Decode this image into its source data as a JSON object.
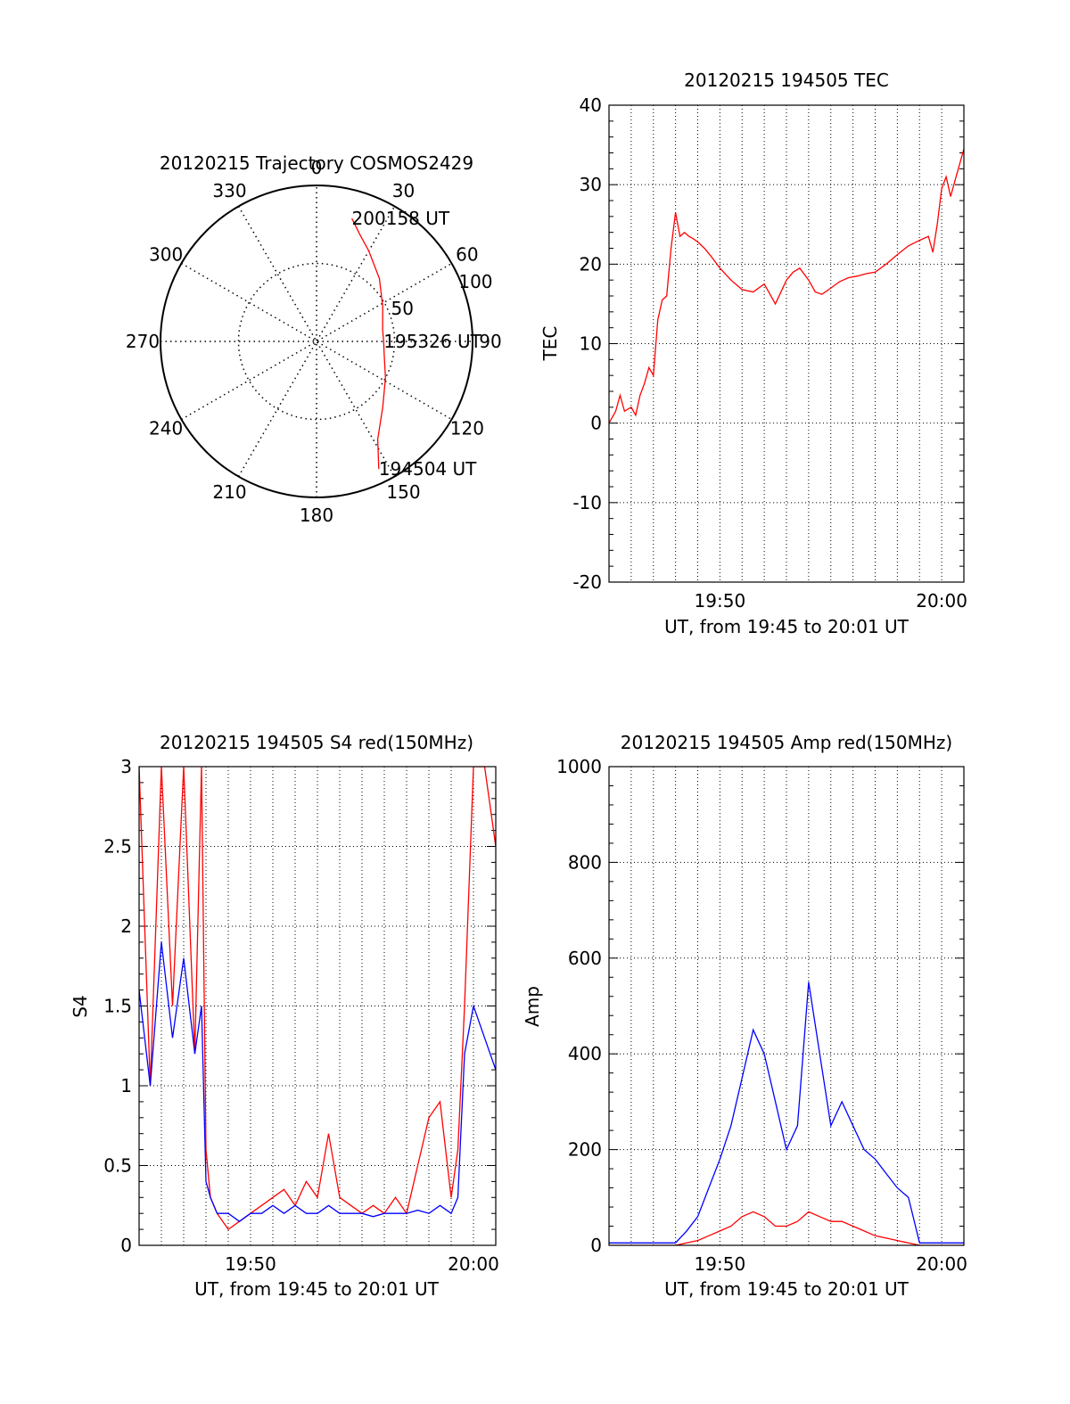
{
  "chart_data": [
    {
      "id": "traj",
      "type": "polar",
      "title": "20120215 Trajectory COSMOS2429",
      "azimuth_labels": [
        "0",
        "30",
        "60",
        "90",
        "120",
        "150",
        "180",
        "210",
        "240",
        "270",
        "300",
        "330"
      ],
      "radial_ticks": [
        {
          "value": 50,
          "label": "50"
        },
        {
          "value": 100,
          "label": "100"
        }
      ],
      "rlim": [
        0,
        100
      ],
      "series": [
        {
          "color": "#ff0000",
          "points": [
            {
              "az": 16,
              "r": 82
            },
            {
              "az": 22,
              "r": 74
            },
            {
              "az": 30,
              "r": 67
            },
            {
              "az": 45,
              "r": 57
            },
            {
              "az": 62,
              "r": 48
            },
            {
              "az": 80,
              "r": 43
            },
            {
              "az": 90,
              "r": 43
            },
            {
              "az": 100,
              "r": 44
            },
            {
              "az": 118,
              "r": 50
            },
            {
              "az": 135,
              "r": 60
            },
            {
              "az": 148,
              "r": 74
            },
            {
              "az": 154,
              "r": 91
            }
          ]
        }
      ],
      "annotations": [
        {
          "text": "200158 UT",
          "az": 16,
          "r": 82
        },
        {
          "text": "195326 UT",
          "az": 90,
          "r": 43
        },
        {
          "text": "194504 UT",
          "az": 154,
          "r": 91
        }
      ]
    },
    {
      "id": "tec",
      "type": "line",
      "title": "20120215 194505 TEC",
      "xlabel": "UT, from 19:45 to 20:01 UT",
      "ylabel": "TEC",
      "xlim_minutes": [
        45.0,
        61.0
      ],
      "x_ticks": [
        {
          "value": 50,
          "label": "19:50"
        },
        {
          "value": 60,
          "label": "20:00"
        }
      ],
      "ylim": [
        -20,
        40
      ],
      "y_ticks": [
        -20,
        -10,
        0,
        10,
        20,
        30,
        40
      ],
      "grid": true,
      "series": [
        {
          "color": "#ff0000",
          "x": [
            45.0,
            45.3,
            45.5,
            45.7,
            46.0,
            46.2,
            46.4,
            46.6,
            46.8,
            47.0,
            47.2,
            47.4,
            47.6,
            47.8,
            48.0,
            48.2,
            48.4,
            48.6,
            48.8,
            49.0,
            49.3,
            49.6,
            50.0,
            50.5,
            51.0,
            51.5,
            52.0,
            52.5,
            53.0,
            53.3,
            53.6,
            54.0,
            54.3,
            54.6,
            55.0,
            55.4,
            55.8,
            56.2,
            56.6,
            57.0,
            57.5,
            58.0,
            58.5,
            59.0,
            59.4,
            59.6,
            59.8,
            60.0,
            60.2,
            60.4,
            60.6,
            60.8,
            61.0
          ],
          "y": [
            0.0,
            1.5,
            3.5,
            1.5,
            2.0,
            1.0,
            3.5,
            5.0,
            7.0,
            6.0,
            13.0,
            15.5,
            16.0,
            22.0,
            26.5,
            23.5,
            24.0,
            23.5,
            23.2,
            22.8,
            22.0,
            21.0,
            19.5,
            18.0,
            16.8,
            16.5,
            17.5,
            15.0,
            18.0,
            19.0,
            19.5,
            18.0,
            16.5,
            16.2,
            17.0,
            17.8,
            18.3,
            18.5,
            18.8,
            19.0,
            20.0,
            21.2,
            22.3,
            23.0,
            23.5,
            21.5,
            25.0,
            29.5,
            31.0,
            28.5,
            30.5,
            32.5,
            34.5
          ]
        }
      ]
    },
    {
      "id": "s4",
      "type": "line",
      "title": "20120215 194505 S4 red(150MHz)",
      "xlabel": "UT, from 19:45 to 20:01 UT",
      "ylabel": "S4",
      "xlim_minutes": [
        45.0,
        61.0
      ],
      "x_ticks": [
        {
          "value": 50,
          "label": "19:50"
        },
        {
          "value": 60,
          "label": "20:00"
        }
      ],
      "ylim": [
        0,
        3
      ],
      "y_ticks": [
        {
          "value": 0,
          "label": "0"
        },
        {
          "value": 0.5,
          "label": "0.5"
        },
        {
          "value": 1,
          "label": "1"
        },
        {
          "value": 1.5,
          "label": "1.5"
        },
        {
          "value": 2,
          "label": "2"
        },
        {
          "value": 2.5,
          "label": "2.5"
        },
        {
          "value": 3,
          "label": "3"
        }
      ],
      "grid": true,
      "series": [
        {
          "color": "#ff0000",
          "x": [
            45.0,
            45.5,
            46.0,
            46.5,
            47.0,
            47.5,
            47.8,
            48.0,
            48.2,
            48.5,
            49.0,
            49.5,
            50.0,
            50.5,
            51.0,
            51.5,
            52.0,
            52.5,
            53.0,
            53.5,
            54.0,
            54.5,
            55.0,
            55.5,
            56.0,
            56.5,
            57.0,
            57.5,
            58.0,
            58.5,
            59.0,
            59.3,
            59.6,
            60.0,
            60.5,
            61.0
          ],
          "y": [
            3.0,
            1.0,
            3.0,
            1.5,
            3.0,
            1.2,
            3.0,
            0.6,
            0.3,
            0.2,
            0.1,
            0.15,
            0.2,
            0.25,
            0.3,
            0.35,
            0.25,
            0.4,
            0.3,
            0.7,
            0.3,
            0.25,
            0.2,
            0.25,
            0.2,
            0.3,
            0.2,
            0.5,
            0.8,
            0.9,
            0.3,
            0.6,
            1.5,
            3.0,
            3.0,
            2.5
          ]
        },
        {
          "color": "#0000ff",
          "x": [
            45.0,
            45.5,
            46.0,
            46.5,
            47.0,
            47.5,
            47.8,
            48.0,
            48.2,
            48.5,
            49.0,
            49.5,
            50.0,
            50.5,
            51.0,
            51.5,
            52.0,
            52.5,
            53.0,
            53.5,
            54.0,
            54.5,
            55.0,
            55.5,
            56.0,
            56.5,
            57.0,
            57.5,
            58.0,
            58.5,
            59.0,
            59.3,
            59.6,
            60.0,
            60.5,
            61.0
          ],
          "y": [
            1.6,
            1.0,
            1.9,
            1.3,
            1.8,
            1.2,
            1.5,
            0.4,
            0.3,
            0.2,
            0.2,
            0.15,
            0.2,
            0.2,
            0.25,
            0.2,
            0.25,
            0.2,
            0.2,
            0.25,
            0.2,
            0.2,
            0.2,
            0.18,
            0.2,
            0.2,
            0.2,
            0.22,
            0.2,
            0.25,
            0.2,
            0.3,
            1.2,
            1.5,
            1.3,
            1.1
          ]
        }
      ]
    },
    {
      "id": "amp",
      "type": "line",
      "title": "20120215 194505 Amp red(150MHz)",
      "xlabel": "UT, from 19:45 to 20:01 UT",
      "ylabel": "Amp",
      "xlim_minutes": [
        45.0,
        61.0
      ],
      "x_ticks": [
        {
          "value": 50,
          "label": "19:50"
        },
        {
          "value": 60,
          "label": "20:00"
        }
      ],
      "ylim": [
        0,
        1000
      ],
      "y_ticks": [
        0,
        200,
        400,
        600,
        800,
        1000
      ],
      "grid": true,
      "series": [
        {
          "color": "#0000ff",
          "x": [
            45.0,
            46.0,
            47.0,
            48.0,
            48.5,
            49.0,
            49.5,
            50.0,
            50.5,
            51.0,
            51.5,
            52.0,
            52.5,
            53.0,
            53.5,
            54.0,
            54.5,
            55.0,
            55.5,
            56.0,
            56.5,
            57.0,
            57.5,
            58.0,
            58.5,
            59.0,
            59.5,
            60.0,
            60.5,
            61.0
          ],
          "y": [
            5,
            5,
            5,
            5,
            30,
            60,
            120,
            180,
            250,
            350,
            450,
            400,
            300,
            200,
            250,
            550,
            400,
            250,
            300,
            250,
            200,
            180,
            150,
            120,
            100,
            5,
            5,
            5,
            5,
            5
          ]
        },
        {
          "color": "#ff0000",
          "x": [
            45.0,
            46.0,
            47.0,
            48.0,
            48.5,
            49.0,
            49.5,
            50.0,
            50.5,
            51.0,
            51.5,
            52.0,
            52.5,
            53.0,
            53.5,
            54.0,
            54.5,
            55.0,
            55.5,
            56.0,
            56.5,
            57.0,
            57.5,
            58.0,
            58.5,
            59.0,
            59.5,
            60.0,
            60.5,
            61.0
          ],
          "y": [
            0,
            0,
            0,
            0,
            5,
            10,
            20,
            30,
            40,
            60,
            70,
            60,
            40,
            40,
            50,
            70,
            60,
            50,
            50,
            40,
            30,
            20,
            15,
            10,
            5,
            0,
            0,
            0,
            0,
            0
          ]
        }
      ]
    }
  ]
}
